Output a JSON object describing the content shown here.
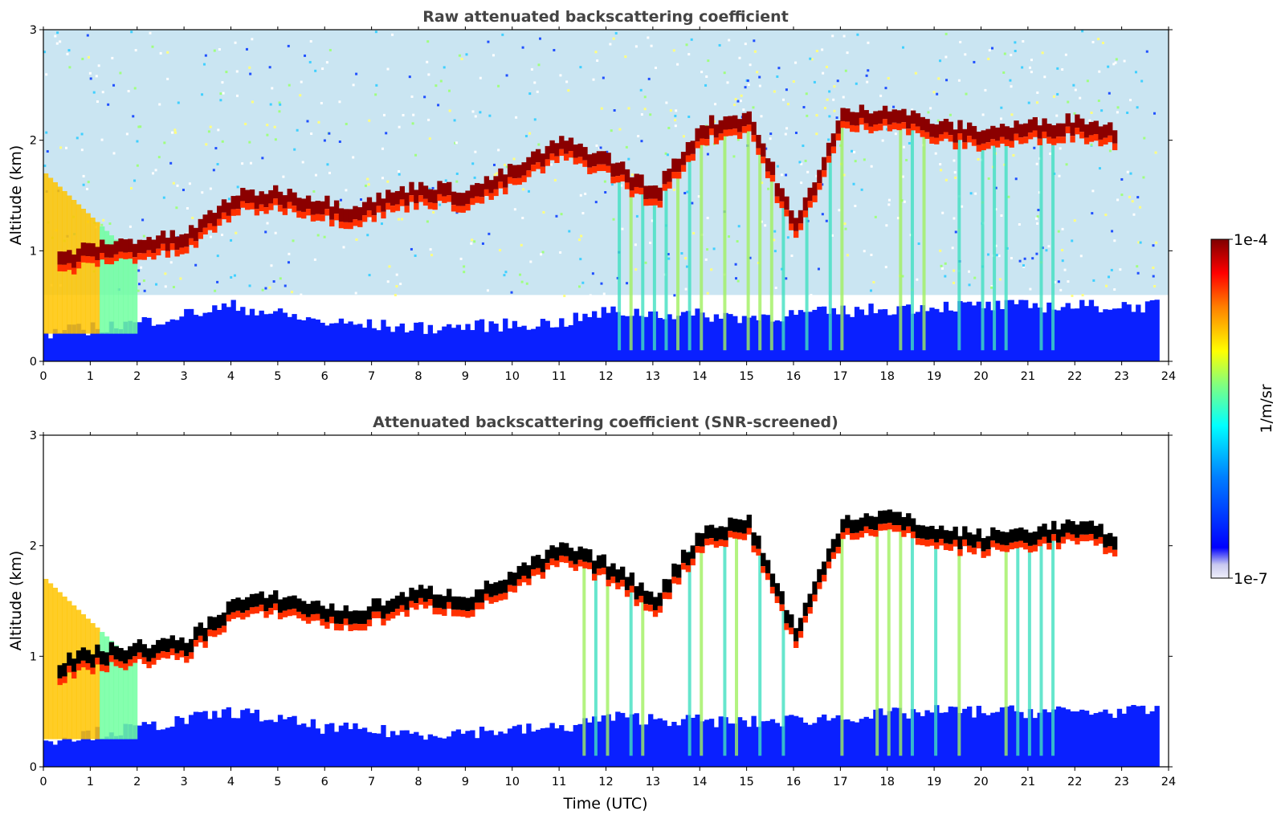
{
  "chart_data": [
    {
      "type": "heatmap",
      "title": "Raw attenuated backscattering coefficient",
      "xlabel": "",
      "ylabel": "Altitude (km)",
      "xlim": [
        0,
        24
      ],
      "ylim": [
        0,
        3
      ],
      "xticks": [
        "0",
        "1",
        "2",
        "3",
        "4",
        "5",
        "6",
        "7",
        "8",
        "9",
        "10",
        "11",
        "12",
        "13",
        "14",
        "15",
        "16",
        "17",
        "18",
        "19",
        "20",
        "21",
        "22",
        "23",
        "24"
      ],
      "yticks": [
        "0",
        "1",
        "2",
        "3"
      ],
      "screened": false,
      "features": {
        "boundary_layer_top_km": [
          [
            0,
            0.25
          ],
          [
            2,
            0.35
          ],
          [
            4,
            0.5
          ],
          [
            6,
            0.35
          ],
          [
            8,
            0.3
          ],
          [
            11,
            0.35
          ],
          [
            12,
            0.45
          ],
          [
            15,
            0.4
          ],
          [
            17,
            0.45
          ],
          [
            19,
            0.5
          ],
          [
            22,
            0.5
          ],
          [
            24,
            0.5
          ]
        ],
        "cloud_layer_km": [
          [
            0.3,
            0.9
          ],
          [
            1.0,
            1.0
          ],
          [
            2.0,
            1.05
          ],
          [
            3.0,
            1.1
          ],
          [
            4.0,
            1.45
          ],
          [
            5.0,
            1.5
          ],
          [
            6.5,
            1.35
          ],
          [
            8.0,
            1.55
          ],
          [
            9.0,
            1.5
          ],
          [
            10.0,
            1.7
          ],
          [
            11.0,
            1.95
          ],
          [
            12.0,
            1.8
          ],
          [
            13.0,
            1.5
          ],
          [
            14.0,
            2.1
          ],
          [
            15.0,
            2.2
          ],
          [
            16.0,
            1.2
          ],
          [
            17.0,
            2.2
          ],
          [
            18.0,
            2.25
          ],
          [
            19.0,
            2.1
          ],
          [
            20.0,
            2.05
          ],
          [
            21.0,
            2.1
          ],
          [
            22.0,
            2.15
          ],
          [
            22.9,
            2.05
          ]
        ]
      }
    },
    {
      "type": "heatmap",
      "title": "Attenuated backscattering coefficient (SNR-screened)",
      "xlabel": "Time (UTC)",
      "ylabel": "Altitude (km)",
      "xlim": [
        0,
        24
      ],
      "ylim": [
        0,
        3
      ],
      "xticks": [
        "0",
        "1",
        "2",
        "3",
        "4",
        "5",
        "6",
        "7",
        "8",
        "9",
        "10",
        "11",
        "12",
        "13",
        "14",
        "15",
        "16",
        "17",
        "18",
        "19",
        "20",
        "21",
        "22",
        "23",
        "24"
      ],
      "yticks": [
        "0",
        "1",
        "2",
        "3"
      ],
      "screened": true
    }
  ],
  "colorbar": {
    "label": "1/m/sr",
    "max_label": "1e-4",
    "min_label": "1e-7",
    "scale": "log",
    "colormap": "jet",
    "colors": [
      "#e6e6f5",
      "#0000ff",
      "#00ffff",
      "#ffff00",
      "#ff0000",
      "#7f0000"
    ]
  }
}
